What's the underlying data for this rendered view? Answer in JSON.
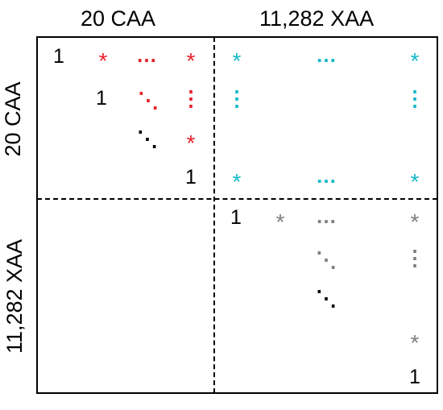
{
  "header": {
    "top_left": "20 CAA",
    "top_right": "11,282 XAA",
    "left_top": "20 CAA",
    "left_bottom": "11,282 XAA"
  },
  "colors": {
    "red": "#e8222b",
    "cyan": "#16b9c9",
    "gray": "#7f7f7f",
    "black": "#000000"
  },
  "matrix": {
    "one": "1",
    "star": "*",
    "hdots": "…",
    "vdots": "⋮",
    "ddots": "⋱"
  }
}
